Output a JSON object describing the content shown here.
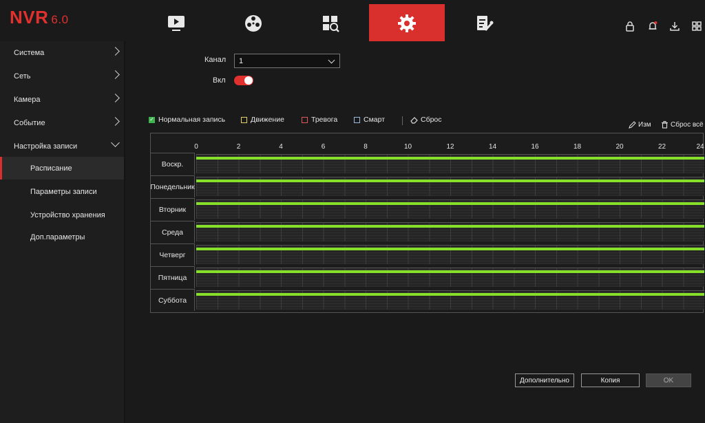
{
  "app": {
    "logo": "NVR",
    "version": "6.0"
  },
  "nav": {
    "tabs": [
      {
        "name": "live-view",
        "icon": "play-monitor-icon"
      },
      {
        "name": "playback",
        "icon": "film-reel-icon"
      },
      {
        "name": "search",
        "icon": "grid-search-icon"
      },
      {
        "name": "settings",
        "icon": "gear-icon",
        "active": true
      },
      {
        "name": "maintenance",
        "icon": "document-wrench-icon"
      }
    ],
    "right_icons": [
      "lock-icon",
      "bell-icon",
      "download-icon",
      "layout-icon"
    ]
  },
  "sidebar": {
    "items": [
      {
        "label": "Система",
        "expanded": false
      },
      {
        "label": "Сеть",
        "expanded": false
      },
      {
        "label": "Камера",
        "expanded": false
      },
      {
        "label": "Событие",
        "expanded": false
      },
      {
        "label": "Настройка записи",
        "expanded": true
      },
      {
        "label": "Расписание",
        "sub": true,
        "active": true
      },
      {
        "label": "Параметры записи",
        "sub": true
      },
      {
        "label": "Устройство хранения",
        "sub": true
      },
      {
        "label": "Доп.параметры",
        "sub": true
      }
    ]
  },
  "form": {
    "channel_label": "Канал",
    "channel_value": "1",
    "enable_label": "Вкл",
    "enable_on": true
  },
  "legend": {
    "normal": "Нормальная запись",
    "motion": "Движение",
    "alarm": "Тревога",
    "smart": "Смарт",
    "reset": "Сброс"
  },
  "colors": {
    "normal": "#3fb34f",
    "motion": "#e8d36a",
    "alarm": "#e05a5a",
    "smart": "#9ab8e0",
    "accent": "#d92f2d",
    "schedule_bar": "#86e02a"
  },
  "tools": {
    "edit": "Изм",
    "reset_all": "Сброс всё"
  },
  "schedule": {
    "hours": [
      "0",
      "2",
      "4",
      "6",
      "8",
      "10",
      "12",
      "14",
      "16",
      "18",
      "20",
      "22",
      "24"
    ],
    "days": [
      {
        "label": "Воскр.",
        "start_h": 0,
        "end_h": 24,
        "type": "normal"
      },
      {
        "label": "Понедельник",
        "start_h": 0,
        "end_h": 24,
        "type": "normal"
      },
      {
        "label": "Вторник",
        "start_h": 0,
        "end_h": 24,
        "type": "normal"
      },
      {
        "label": "Среда",
        "start_h": 0,
        "end_h": 24,
        "type": "normal"
      },
      {
        "label": "Четверг",
        "start_h": 0,
        "end_h": 24,
        "type": "normal"
      },
      {
        "label": "Пятница",
        "start_h": 0,
        "end_h": 24,
        "type": "normal"
      },
      {
        "label": "Суббота",
        "start_h": 0,
        "end_h": 24,
        "type": "normal"
      }
    ]
  },
  "buttons": {
    "advanced": "Дополнительно",
    "copy": "Копия",
    "ok": "OK"
  }
}
